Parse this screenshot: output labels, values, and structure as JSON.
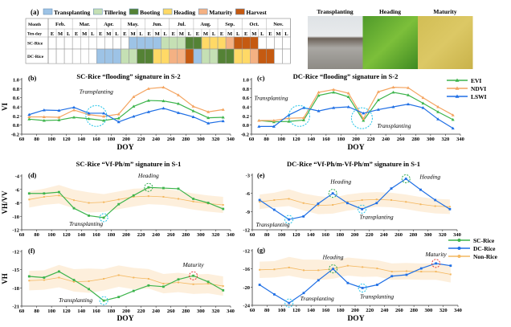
{
  "panel_a": {
    "label": "(a)",
    "legend": [
      {
        "key": "T",
        "name": "Transplanting",
        "color": "#9dc3e6"
      },
      {
        "key": "Ti",
        "name": "Tillering",
        "color": "#c5e0b4"
      },
      {
        "key": "B",
        "name": "Booting",
        "color": "#548235"
      },
      {
        "key": "H",
        "name": "Heading",
        "color": "#ffd966"
      },
      {
        "key": "M",
        "name": "Maturity",
        "color": "#f4b183"
      },
      {
        "key": "Ha",
        "name": "Harvest",
        "color": "#c55a11"
      }
    ],
    "header_month": "Month",
    "header_tenday": "Ten-day",
    "months": [
      "Feb.",
      "Mar.",
      "Apr.",
      "May.",
      "Jun.",
      "Jul.",
      "Aug.",
      "Sep.",
      "Oct.",
      "Nov."
    ],
    "tendays": [
      "E",
      "M",
      "L"
    ],
    "rows": [
      {
        "name": "SC-Rice",
        "cells": [
          null,
          null,
          null,
          null,
          null,
          null,
          null,
          null,
          null,
          null,
          "T",
          "T",
          "T",
          "T",
          "Ti",
          "Ti",
          "Ti",
          "B",
          "B",
          "H",
          "H",
          "H",
          "M",
          "Ha",
          "Ha",
          "Ha",
          null,
          null,
          null,
          null
        ]
      },
      {
        "name": "DC-Rice",
        "cells": [
          null,
          null,
          null,
          null,
          null,
          null,
          "T",
          "T",
          "T",
          "Ti",
          "Ti",
          "B",
          "B",
          "H",
          "H",
          "M",
          "M",
          "Ha",
          "T",
          "Ti",
          "Ti",
          "B",
          "B",
          "H",
          "H",
          "M",
          "Ha",
          "Ha",
          null,
          null
        ]
      }
    ]
  },
  "photos": [
    {
      "label": "Transplanting",
      "kind": "flooded-field"
    },
    {
      "label": "Heading",
      "kind": "green-rice"
    },
    {
      "label": "Maturity",
      "kind": "yellow-rice"
    }
  ],
  "legend_vi": [
    {
      "name": "EVI",
      "color": "#3cb44b"
    },
    {
      "name": "NDVI",
      "color": "#f4a460"
    },
    {
      "name": "LSWI",
      "color": "#1f6fe5"
    }
  ],
  "legend_sar": [
    {
      "name": "SC-Rice",
      "color": "#3cb44b"
    },
    {
      "name": "DC-Rice",
      "color": "#1f6fe5"
    },
    {
      "name": "Non-Rice",
      "color": "#f4b860"
    }
  ],
  "chart_data": [
    {
      "id": "b",
      "type": "line",
      "label": "(b)",
      "title": "SC-Rice “flooding” signature in S-2",
      "xlabel": "DOY",
      "ylabel": "VI",
      "xlim": [
        60,
        340
      ],
      "xticks": [
        60,
        80,
        100,
        120,
        140,
        160,
        180,
        200,
        220,
        240,
        260,
        280,
        300,
        320,
        340
      ],
      "ylim": [
        -0.2,
        1.0
      ],
      "yticks": [
        "-0.2",
        "0.0",
        "0.2",
        "0.4",
        "0.6",
        "0.8",
        "1.0"
      ],
      "x": [
        70,
        90,
        110,
        130,
        150,
        170,
        190,
        210,
        230,
        250,
        270,
        290,
        310,
        330
      ],
      "series": [
        {
          "name": "EVI",
          "color": "#3cb44b",
          "values": [
            0.13,
            0.1,
            0.11,
            0.17,
            0.14,
            0.1,
            0.15,
            0.41,
            0.54,
            0.53,
            0.47,
            0.31,
            0.16,
            0.17
          ]
        },
        {
          "name": "NDVI",
          "color": "#f4a460",
          "values": [
            0.18,
            0.18,
            0.17,
            0.33,
            0.23,
            0.19,
            0.24,
            0.62,
            0.8,
            0.83,
            0.66,
            0.41,
            0.29,
            0.34
          ]
        },
        {
          "name": "LSWI",
          "color": "#1f6fe5",
          "values": [
            0.23,
            0.33,
            0.32,
            0.39,
            0.26,
            0.26,
            0.07,
            0.19,
            0.29,
            0.37,
            0.27,
            0.18,
            0.04,
            0.09
          ]
        }
      ],
      "annotations": [
        {
          "text": "Transplanting",
          "x": 160,
          "y": 0.2,
          "color": "#22c4e8",
          "big": true
        }
      ]
    },
    {
      "id": "c",
      "type": "line",
      "label": "(c)",
      "title": "DC-Rice “flooding” signature in S-2",
      "xlabel": "DOY",
      "ylabel": "",
      "xlim": [
        60,
        340
      ],
      "xticks": [
        60,
        80,
        100,
        120,
        140,
        160,
        180,
        200,
        220,
        240,
        260,
        280,
        300,
        320,
        340
      ],
      "ylim": [
        -0.2,
        1.0
      ],
      "yticks": [
        "-0.2",
        "0.0",
        "0.2",
        "0.4",
        "0.6",
        "0.8",
        "1.0"
      ],
      "x": [
        70,
        90,
        110,
        130,
        150,
        170,
        190,
        210,
        230,
        250,
        270,
        290,
        310,
        330
      ],
      "series": [
        {
          "name": "EVI",
          "color": "#3cb44b",
          "values": [
            0.1,
            0.07,
            0.08,
            0.11,
            0.65,
            0.72,
            0.62,
            0.1,
            0.55,
            0.72,
            0.66,
            0.48,
            0.29,
            0.12
          ]
        },
        {
          "name": "NDVI",
          "color": "#f4a460",
          "values": [
            0.1,
            0.1,
            0.15,
            0.16,
            0.72,
            0.78,
            0.7,
            0.14,
            0.73,
            0.83,
            0.82,
            0.6,
            0.4,
            0.22
          ]
        },
        {
          "name": "LSWI",
          "color": "#1f6fe5",
          "values": [
            -0.03,
            -0.03,
            0.22,
            0.38,
            0.31,
            0.38,
            0.4,
            0.26,
            0.34,
            0.4,
            0.46,
            0.38,
            0.13,
            -0.07
          ]
        }
      ],
      "annotations": [
        {
          "text": "Transplanting",
          "x": 124,
          "y": 0.2,
          "color": "#22c4e8",
          "big": true
        },
        {
          "text": "Transplanting",
          "x": 208,
          "y": 0.15,
          "color": "#22c4e8",
          "big": true
        }
      ]
    },
    {
      "id": "d",
      "type": "line",
      "label": "(d)",
      "title": "SC-Rice “Vf-Ph/m” signature in S-1",
      "xlabel": "",
      "ylabel": "VH/VV",
      "xlim": [
        60,
        340
      ],
      "xticks": [
        60,
        80,
        100,
        120,
        140,
        160,
        180,
        200,
        220,
        240,
        260,
        280,
        300,
        320,
        340
      ],
      "ylim": [
        -12,
        -4
      ],
      "yticks": [
        "-12",
        "-10",
        "-8",
        "-6",
        "-4"
      ],
      "x": [
        70,
        90,
        110,
        130,
        150,
        170,
        190,
        210,
        230,
        250,
        270,
        290,
        310,
        330
      ],
      "series": [
        {
          "name": "Non-Rice",
          "color": "#f4b860",
          "values": [
            -7.5,
            -7.1,
            -6.9,
            -7.6,
            -8.0,
            -7.9,
            -7.5,
            -7.1,
            -7.0,
            -7.1,
            -7.4,
            -7.8,
            -8.1,
            -8.3
          ],
          "band": 1.2
        },
        {
          "name": "SC-Rice",
          "color": "#3cb44b",
          "values": [
            -6.6,
            -6.6,
            -6.4,
            -8.8,
            -9.9,
            -10.2,
            -8.2,
            -6.9,
            -5.7,
            -5.8,
            -5.9,
            -7.4,
            -8.0,
            -8.9
          ]
        }
      ],
      "annotations": [
        {
          "text": "Transplanting",
          "x": 170,
          "y": -10.2,
          "color": "#22c4e8"
        },
        {
          "text": "Heading",
          "x": 230,
          "y": -5.7,
          "color": "#2aa84a"
        }
      ]
    },
    {
      "id": "e",
      "type": "line",
      "label": "(e)",
      "title": "DC-Rice “Vf-Ph/m-Vf-Ph/m” signature in S-1",
      "xlabel": "",
      "ylabel": "",
      "xlim": [
        60,
        340
      ],
      "xticks": [
        60,
        80,
        100,
        120,
        140,
        160,
        180,
        200,
        220,
        240,
        260,
        280,
        300,
        320,
        340
      ],
      "ylim": [
        -12,
        -3
      ],
      "yticks": [
        "-12",
        "-9",
        "-6",
        "-3"
      ],
      "x": [
        70,
        90,
        110,
        130,
        150,
        170,
        190,
        210,
        230,
        250,
        270,
        290,
        310,
        330
      ],
      "series": [
        {
          "name": "Non-Rice",
          "color": "#f4b860",
          "values": [
            -7.4,
            -7.1,
            -6.9,
            -7.6,
            -8.0,
            -7.9,
            -7.4,
            -7.1,
            -7.0,
            -7.1,
            -7.4,
            -7.8,
            -8.1,
            -8.2
          ],
          "band": 1.2
        },
        {
          "name": "DC-Rice",
          "color": "#1f6fe5",
          "values": [
            -7.1,
            -8.7,
            -10.3,
            -9.8,
            -7.7,
            -6.0,
            -7.6,
            -8.6,
            -7.6,
            -5.2,
            -3.6,
            -5.4,
            -7.1,
            -8.6
          ]
        }
      ],
      "annotations": [
        {
          "text": "Transplanting",
          "x": 110,
          "y": -10.3,
          "color": "#22c4e8"
        },
        {
          "text": "Heading",
          "x": 170,
          "y": -6.0,
          "color": "#2aa84a"
        },
        {
          "text": "Transplanting",
          "x": 210,
          "y": -8.6,
          "color": "#22c4e8"
        },
        {
          "text": "Heading",
          "x": 270,
          "y": -3.6,
          "color": "#2aa84a"
        }
      ]
    },
    {
      "id": "f",
      "type": "line",
      "label": "(f)",
      "title": "",
      "xlabel": "DOY",
      "ylabel": "VH",
      "xlim": [
        60,
        340
      ],
      "xticks": [
        60,
        80,
        100,
        120,
        140,
        160,
        180,
        200,
        220,
        240,
        260,
        280,
        300,
        320,
        340
      ],
      "ylim": [
        -21,
        -12
      ],
      "yticks": [
        "-21",
        "-18",
        "-15",
        "-12"
      ],
      "x": [
        70,
        90,
        110,
        130,
        150,
        170,
        190,
        210,
        230,
        250,
        270,
        290,
        310,
        330
      ],
      "series": [
        {
          "name": "Non-Rice",
          "color": "#f4b860",
          "values": [
            -16.8,
            -16.7,
            -16.3,
            -17.0,
            -16.9,
            -16.5,
            -15.9,
            -16.3,
            -16.5,
            -17.3,
            -17.1,
            -17.4,
            -17.3,
            -17.7
          ],
          "band": 1.6
        },
        {
          "name": "SC-Rice",
          "color": "#3cb44b",
          "values": [
            -16.1,
            -16.3,
            -15.3,
            -16.7,
            -18.2,
            -20.1,
            -19.5,
            -18.5,
            -17.6,
            -17.8,
            -16.6,
            -16.0,
            -17.0,
            -18.4
          ]
        }
      ],
      "annotations": [
        {
          "text": "Transplanting",
          "x": 170,
          "y": -20.1,
          "color": "#22c4e8"
        },
        {
          "text": "Maturity",
          "x": 290,
          "y": -16.0,
          "color": "#e53935"
        }
      ]
    },
    {
      "id": "g",
      "type": "line",
      "label": "(g)",
      "title": "",
      "xlabel": "DOY",
      "ylabel": "",
      "xlim": [
        60,
        340
      ],
      "xticks": [
        60,
        80,
        100,
        120,
        140,
        160,
        180,
        200,
        220,
        240,
        260,
        280,
        300,
        320,
        340
      ],
      "ylim": [
        -24,
        -12
      ],
      "yticks": [
        "-24",
        "-20",
        "-16",
        "-12"
      ],
      "x": [
        70,
        90,
        110,
        130,
        150,
        170,
        190,
        210,
        230,
        250,
        270,
        290,
        310,
        330
      ],
      "series": [
        {
          "name": "Non-Rice",
          "color": "#f4b860",
          "values": [
            -16.2,
            -16.1,
            -15.7,
            -16.3,
            -16.3,
            -16.0,
            -15.3,
            -15.6,
            -15.9,
            -16.6,
            -16.5,
            -16.6,
            -16.6,
            -17.2
          ],
          "band": 1.8
        },
        {
          "name": "DC-Rice",
          "color": "#1f6fe5",
          "values": [
            -19.5,
            -21.6,
            -23.5,
            -21.3,
            -18.5,
            -16.0,
            -19.1,
            -20.2,
            -19.5,
            -17.6,
            -17.3,
            -15.9,
            -14.8,
            -15.3
          ]
        }
      ],
      "annotations": [
        {
          "text": "Transplanting",
          "x": 110,
          "y": -23.5,
          "color": "#22c4e8"
        },
        {
          "text": "Heading",
          "x": 170,
          "y": -16.0,
          "color": "#2aa84a"
        },
        {
          "text": "Transplanting",
          "x": 210,
          "y": -20.2,
          "color": "#22c4e8"
        },
        {
          "text": "Maturity",
          "x": 310,
          "y": -14.8,
          "color": "#e53935"
        }
      ]
    }
  ]
}
